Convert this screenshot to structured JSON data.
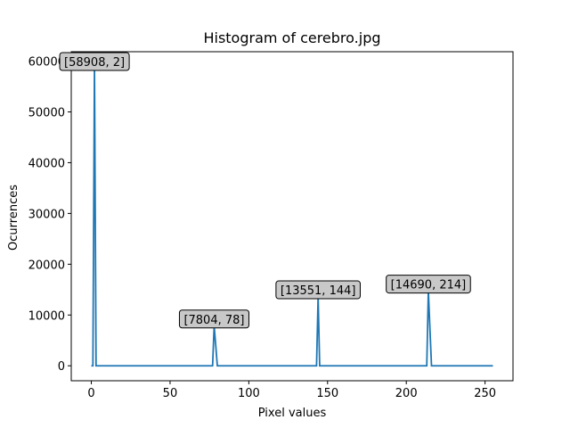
{
  "chart_data": {
    "type": "line",
    "title": "Histogram of cerebro.jpg",
    "xlabel": "Pixel values",
    "ylabel": "Ocurrences",
    "xlim": [
      -12.75,
      267.75
    ],
    "ylim": [
      -2945,
      61850
    ],
    "xticks": [
      0,
      50,
      100,
      150,
      200,
      250
    ],
    "yticks": [
      0,
      10000,
      20000,
      30000,
      40000,
      50000,
      60000
    ],
    "grid": false,
    "color": "#1f77b4",
    "series": [
      {
        "x": [
          0,
          1,
          2,
          3,
          4,
          76,
          77,
          78,
          79,
          80,
          142,
          143,
          144,
          145,
          146,
          212,
          213,
          214,
          215,
          216,
          255
        ],
        "values": [
          0,
          0,
          58908,
          0,
          0,
          0,
          0,
          7804,
          4000,
          0,
          0,
          0,
          13551,
          0,
          0,
          0,
          0,
          14690,
          7300,
          0,
          0
        ]
      }
    ],
    "annotations": [
      {
        "text": "[58908, 2]",
        "x": 2,
        "y": 58908
      },
      {
        "text": "[7804, 78]",
        "x": 78,
        "y": 7804
      },
      {
        "text": "[13551, 144]",
        "x": 144,
        "y": 13551
      },
      {
        "text": "[14690, 214]",
        "x": 214,
        "y": 14690
      }
    ]
  }
}
